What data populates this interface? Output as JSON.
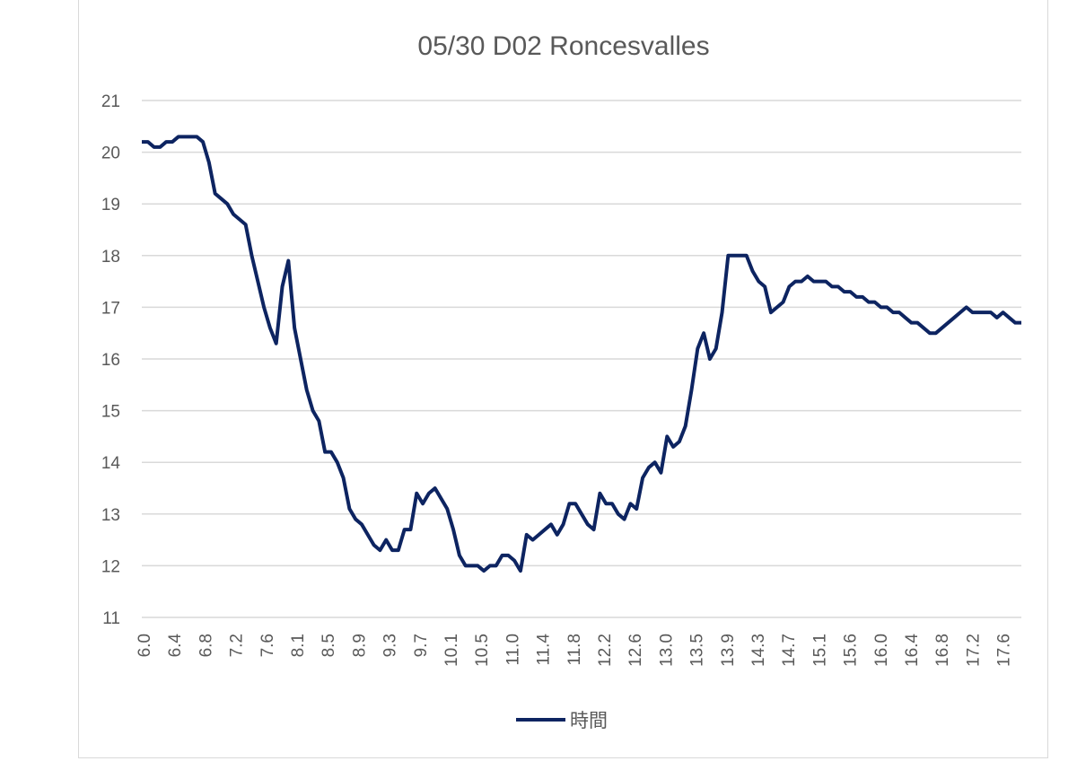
{
  "chart_data": {
    "type": "line",
    "title": "05/30 D02 Roncesvalles",
    "xlabel": "",
    "ylabel": "",
    "ylim": [
      11,
      21
    ],
    "yticks": [
      11,
      12,
      13,
      14,
      15,
      16,
      17,
      18,
      19,
      20,
      21
    ],
    "xtick_labels": [
      "6.0",
      "6.4",
      "6.8",
      "7.2",
      "7.6",
      "8.1",
      "8.5",
      "8.9",
      "9.3",
      "9.7",
      "10.1",
      "10.5",
      "11.0",
      "11.4",
      "11.8",
      "12.2",
      "12.6",
      "13.0",
      "13.5",
      "13.9",
      "14.3",
      "14.7",
      "15.1",
      "15.6",
      "16.0",
      "16.4",
      "16.8",
      "17.2",
      "17.6"
    ],
    "grid": true,
    "legend_position": "bottom",
    "series": [
      {
        "name": "時間",
        "color": "#0d2461",
        "values": [
          20.2,
          20.2,
          20.1,
          20.1,
          20.2,
          20.2,
          20.3,
          20.3,
          20.3,
          20.3,
          20.2,
          19.8,
          19.2,
          19.1,
          19.0,
          18.8,
          18.7,
          18.6,
          18.0,
          17.5,
          17.0,
          16.6,
          16.3,
          17.4,
          17.9,
          16.6,
          16.0,
          15.4,
          15.0,
          14.8,
          14.2,
          14.2,
          14.0,
          13.7,
          13.1,
          12.9,
          12.8,
          12.6,
          12.4,
          12.3,
          12.5,
          12.3,
          12.3,
          12.7,
          12.7,
          13.4,
          13.2,
          13.4,
          13.5,
          13.3,
          13.1,
          12.7,
          12.2,
          12.0,
          12.0,
          12.0,
          11.9,
          12.0,
          12.0,
          12.2,
          12.2,
          12.1,
          11.9,
          12.6,
          12.5,
          12.6,
          12.7,
          12.8,
          12.6,
          12.8,
          13.2,
          13.2,
          13.0,
          12.8,
          12.7,
          13.4,
          13.2,
          13.2,
          13.0,
          12.9,
          13.2,
          13.1,
          13.7,
          13.9,
          14.0,
          13.8,
          14.5,
          14.3,
          14.4,
          14.7,
          15.4,
          16.2,
          16.5,
          16.0,
          16.2,
          16.9,
          18.0,
          18.0,
          18.0,
          18.0,
          17.7,
          17.5,
          17.4,
          16.9,
          17.0,
          17.1,
          17.4,
          17.5,
          17.5,
          17.6,
          17.5,
          17.5,
          17.5,
          17.4,
          17.4,
          17.3,
          17.3,
          17.2,
          17.2,
          17.1,
          17.1,
          17.0,
          17.0,
          16.9,
          16.9,
          16.8,
          16.7,
          16.7,
          16.6,
          16.5,
          16.5,
          16.6,
          16.7,
          16.8,
          16.9,
          17.0,
          16.9,
          16.9,
          16.9,
          16.9,
          16.8,
          16.9,
          16.8,
          16.7,
          16.7
        ]
      }
    ]
  }
}
